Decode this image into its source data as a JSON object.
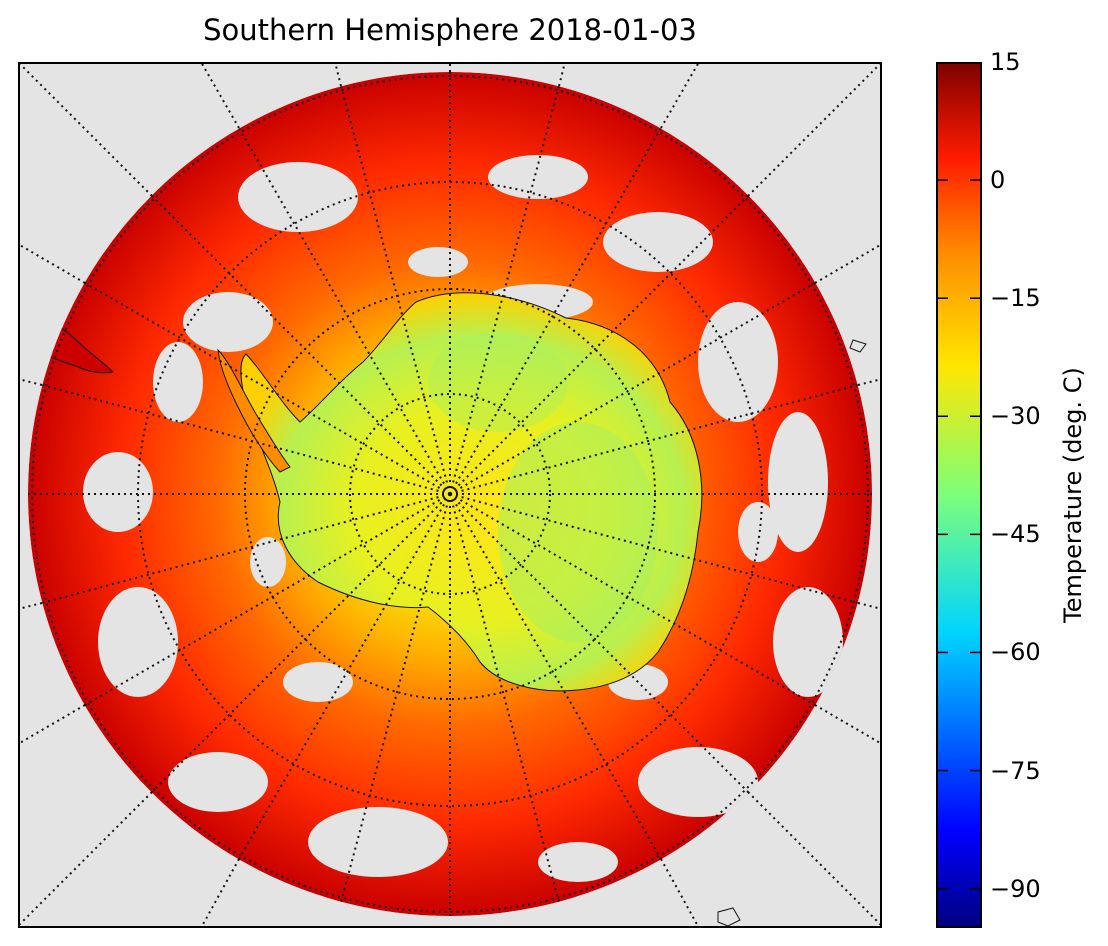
{
  "title": "Southern Hemisphere 2018-01-03",
  "map": {
    "projection": "south-polar-stereographic",
    "background_color": "#e4e4e4",
    "graticule_style": "dotted",
    "features": [
      "Antarctica coastline",
      "Antarctic Peninsula",
      "southern tip of South America",
      "New Zealand",
      "Tasmania"
    ]
  },
  "colorbar": {
    "label": "Temperature (deg. C)",
    "colormap": "jet",
    "vmin": -95,
    "vmax": 15,
    "ticks": [
      "15",
      "0",
      "−15",
      "−30",
      "−45",
      "−60",
      "−75",
      "−90"
    ],
    "tick_values": [
      15,
      0,
      -15,
      -30,
      -45,
      -60,
      -75,
      -90
    ]
  }
}
